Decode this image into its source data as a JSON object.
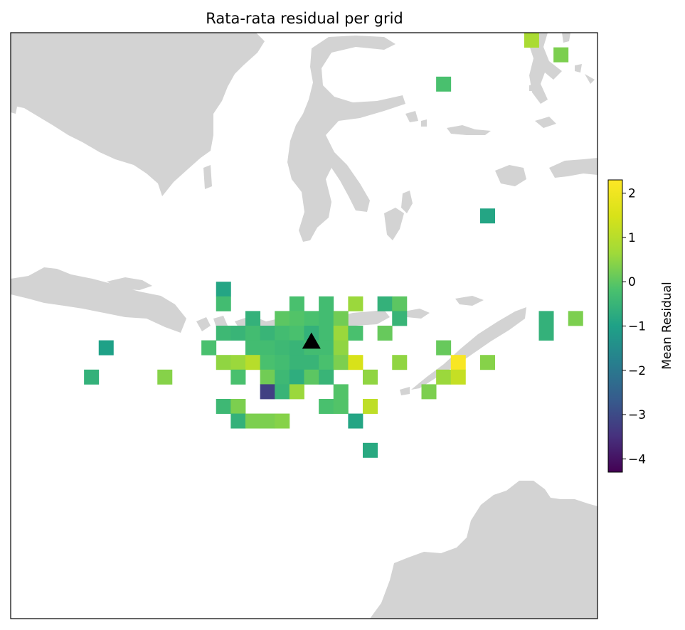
{
  "chart_data": {
    "type": "heatmap",
    "title": "Rata-rata residual per grid",
    "colorbar": {
      "label": "Mean Residual",
      "range": [
        -4.3,
        2.3
      ],
      "ticks": [
        2,
        1,
        0,
        -1,
        -2,
        -3,
        -4
      ],
      "tick_labels": [
        "2",
        "1",
        "0",
        "−1",
        "−2",
        "−3",
        "−4"
      ],
      "colormap": "viridis"
    },
    "grid_columns": 40,
    "grid_rows": 40,
    "cells": [
      {
        "col": 35,
        "row": 0,
        "value": 0.8
      },
      {
        "col": 37,
        "row": 1,
        "value": 0.3
      },
      {
        "col": 29,
        "row": 3,
        "value": -0.2
      },
      {
        "col": 40,
        "row": 9,
        "value": 1.0
      },
      {
        "col": 32,
        "row": 12,
        "value": -0.9
      },
      {
        "col": 40,
        "row": 16,
        "value": 0.6
      },
      {
        "col": 14,
        "row": 17,
        "value": -0.9
      },
      {
        "col": 14,
        "row": 18,
        "value": -0.3
      },
      {
        "col": 19,
        "row": 18,
        "value": -0.2
      },
      {
        "col": 21,
        "row": 18,
        "value": -0.3
      },
      {
        "col": 23,
        "row": 18,
        "value": 0.6
      },
      {
        "col": 25,
        "row": 18,
        "value": -0.6
      },
      {
        "col": 26,
        "row": 18,
        "value": 0.0
      },
      {
        "col": 40,
        "row": 18,
        "value": -0.3
      },
      {
        "col": 16,
        "row": 19,
        "value": -0.6
      },
      {
        "col": 18,
        "row": 19,
        "value": 0.0
      },
      {
        "col": 19,
        "row": 19,
        "value": -0.1
      },
      {
        "col": 20,
        "row": 19,
        "value": -0.2
      },
      {
        "col": 21,
        "row": 19,
        "value": -0.3
      },
      {
        "col": 22,
        "row": 19,
        "value": 0.2
      },
      {
        "col": 26,
        "row": 19,
        "value": -0.5
      },
      {
        "col": 36,
        "row": 19,
        "value": -0.6
      },
      {
        "col": 38,
        "row": 19,
        "value": 0.3
      },
      {
        "col": 14,
        "row": 20,
        "value": -0.4
      },
      {
        "col": 15,
        "row": 20,
        "value": -0.5
      },
      {
        "col": 16,
        "row": 20,
        "value": -0.3
      },
      {
        "col": 17,
        "row": 20,
        "value": -0.5
      },
      {
        "col": 18,
        "row": 20,
        "value": -0.3
      },
      {
        "col": 19,
        "row": 20,
        "value": -0.2
      },
      {
        "col": 20,
        "row": 20,
        "value": -0.6
      },
      {
        "col": 21,
        "row": 20,
        "value": -0.3
      },
      {
        "col": 22,
        "row": 20,
        "value": 0.6
      },
      {
        "col": 23,
        "row": 20,
        "value": -0.2
      },
      {
        "col": 25,
        "row": 20,
        "value": 0.1
      },
      {
        "col": 36,
        "row": 20,
        "value": -0.6
      },
      {
        "col": 6,
        "row": 21,
        "value": -1.0
      },
      {
        "col": 13,
        "row": 21,
        "value": -0.2
      },
      {
        "col": 16,
        "row": 21,
        "value": -0.3
      },
      {
        "col": 17,
        "row": 21,
        "value": -0.3
      },
      {
        "col": 18,
        "row": 21,
        "value": -0.4
      },
      {
        "col": 19,
        "row": 21,
        "value": -0.5
      },
      {
        "col": 20,
        "row": 21,
        "value": -0.3
      },
      {
        "col": 21,
        "row": 21,
        "value": -0.3
      },
      {
        "col": 22,
        "row": 21,
        "value": 0.5
      },
      {
        "col": 29,
        "row": 21,
        "value": 0.1
      },
      {
        "col": 14,
        "row": 22,
        "value": 0.5
      },
      {
        "col": 15,
        "row": 22,
        "value": 0.6
      },
      {
        "col": 16,
        "row": 22,
        "value": 1.0
      },
      {
        "col": 17,
        "row": 22,
        "value": -0.2
      },
      {
        "col": 18,
        "row": 22,
        "value": -0.3
      },
      {
        "col": 19,
        "row": 22,
        "value": -0.5
      },
      {
        "col": 20,
        "row": 22,
        "value": -0.5
      },
      {
        "col": 21,
        "row": 22,
        "value": -0.2
      },
      {
        "col": 22,
        "row": 22,
        "value": 0.3
      },
      {
        "col": 23,
        "row": 22,
        "value": 1.5
      },
      {
        "col": 26,
        "row": 22,
        "value": 0.5
      },
      {
        "col": 30,
        "row": 22,
        "value": 2.2
      },
      {
        "col": 32,
        "row": 22,
        "value": 0.4
      },
      {
        "col": 5,
        "row": 23,
        "value": -0.6
      },
      {
        "col": 10,
        "row": 23,
        "value": 0.4
      },
      {
        "col": 15,
        "row": 23,
        "value": -0.2
      },
      {
        "col": 17,
        "row": 23,
        "value": 0.2
      },
      {
        "col": 18,
        "row": 23,
        "value": -0.4
      },
      {
        "col": 19,
        "row": 23,
        "value": -0.7
      },
      {
        "col": 20,
        "row": 23,
        "value": 0.0
      },
      {
        "col": 21,
        "row": 23,
        "value": -0.5
      },
      {
        "col": 24,
        "row": 23,
        "value": 0.5
      },
      {
        "col": 29,
        "row": 23,
        "value": 0.6
      },
      {
        "col": 30,
        "row": 23,
        "value": 1.2
      },
      {
        "col": 17,
        "row": 24,
        "value": -3.2
      },
      {
        "col": 18,
        "row": 24,
        "value": -0.5
      },
      {
        "col": 19,
        "row": 24,
        "value": 0.6
      },
      {
        "col": 22,
        "row": 24,
        "value": -0.1
      },
      {
        "col": 28,
        "row": 24,
        "value": 0.3
      },
      {
        "col": 14,
        "row": 25,
        "value": -0.4
      },
      {
        "col": 15,
        "row": 25,
        "value": 0.3
      },
      {
        "col": 21,
        "row": 25,
        "value": -0.2
      },
      {
        "col": 22,
        "row": 25,
        "value": -0.1
      },
      {
        "col": 24,
        "row": 25,
        "value": 1.1
      },
      {
        "col": 15,
        "row": 26,
        "value": -0.6
      },
      {
        "col": 16,
        "row": 26,
        "value": 0.3
      },
      {
        "col": 17,
        "row": 26,
        "value": 0.3
      },
      {
        "col": 18,
        "row": 26,
        "value": 0.4
      },
      {
        "col": 23,
        "row": 26,
        "value": -0.9
      },
      {
        "col": 24,
        "row": 28,
        "value": -0.8
      }
    ],
    "markers": [
      {
        "type": "triangle",
        "color": "#000000",
        "col": 20,
        "row": 20.6
      }
    ]
  }
}
